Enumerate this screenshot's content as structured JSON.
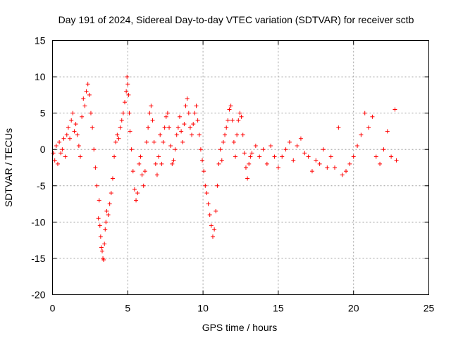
{
  "chart_data": {
    "type": "scatter",
    "title": "Day 191 of 2024, Sidereal Day-to-day VTEC variation (SDTVAR) for receiver sctb",
    "xlabel": "GPS time / hours",
    "ylabel": "SDTVAR / TECUs",
    "xlim": [
      0,
      25
    ],
    "ylim": [
      -20,
      15
    ],
    "xticks": [
      "0",
      "5",
      "10",
      "15",
      "20",
      "25"
    ],
    "yticks": [
      "15",
      "10",
      "5",
      "0",
      "-5",
      "-10",
      "-15",
      "-20"
    ],
    "grid": true,
    "marker": "plus",
    "color": "#ff0000",
    "series": [
      {
        "name": "sctb",
        "points": [
          [
            0.05,
            -0.5
          ],
          [
            0.15,
            -1.5
          ],
          [
            0.25,
            0.5
          ],
          [
            0.35,
            -2.0
          ],
          [
            0.45,
            1.0
          ],
          [
            0.55,
            -0.5
          ],
          [
            0.65,
            0.0
          ],
          [
            0.75,
            1.5
          ],
          [
            0.85,
            -1.0
          ],
          [
            0.95,
            2.0
          ],
          [
            1.05,
            3.0
          ],
          [
            1.15,
            1.5
          ],
          [
            1.25,
            4.0
          ],
          [
            1.35,
            5.0
          ],
          [
            1.45,
            2.5
          ],
          [
            1.55,
            3.5
          ],
          [
            1.65,
            2.0
          ],
          [
            1.75,
            0.5
          ],
          [
            1.85,
            -1.0
          ],
          [
            1.95,
            4.5
          ],
          [
            2.05,
            7.0
          ],
          [
            2.15,
            6.0
          ],
          [
            2.25,
            8.0
          ],
          [
            2.35,
            9.0
          ],
          [
            2.45,
            7.5
          ],
          [
            2.55,
            5.0
          ],
          [
            2.65,
            3.0
          ],
          [
            2.75,
            0.0
          ],
          [
            2.85,
            -2.5
          ],
          [
            2.95,
            -5.0
          ],
          [
            3.05,
            -9.5
          ],
          [
            3.1,
            -7.0
          ],
          [
            3.15,
            -10.5
          ],
          [
            3.2,
            -12.0
          ],
          [
            3.25,
            -13.5
          ],
          [
            3.3,
            -14.0
          ],
          [
            3.35,
            -15.0
          ],
          [
            3.4,
            -15.2
          ],
          [
            3.45,
            -13.0
          ],
          [
            3.5,
            -11.0
          ],
          [
            3.55,
            -10.0
          ],
          [
            3.6,
            -8.5
          ],
          [
            3.7,
            -9.0
          ],
          [
            3.8,
            -7.5
          ],
          [
            3.9,
            -6.0
          ],
          [
            4.0,
            -4.0
          ],
          [
            4.1,
            -1.0
          ],
          [
            4.2,
            1.0
          ],
          [
            4.3,
            2.0
          ],
          [
            4.4,
            1.5
          ],
          [
            4.5,
            3.0
          ],
          [
            4.6,
            4.0
          ],
          [
            4.7,
            5.0
          ],
          [
            4.8,
            6.5
          ],
          [
            4.9,
            8.0
          ],
          [
            4.95,
            10.0
          ],
          [
            5.0,
            9.0
          ],
          [
            5.05,
            7.5
          ],
          [
            5.1,
            5.0
          ],
          [
            5.15,
            2.5
          ],
          [
            5.25,
            0.0
          ],
          [
            5.35,
            -3.0
          ],
          [
            5.45,
            -5.5
          ],
          [
            5.55,
            -7.0
          ],
          [
            5.65,
            -6.0
          ],
          [
            5.75,
            -2.0
          ],
          [
            5.85,
            -1.0
          ],
          [
            5.95,
            -3.5
          ],
          [
            6.05,
            -5.0
          ],
          [
            6.15,
            -3.0
          ],
          [
            6.25,
            1.0
          ],
          [
            6.35,
            3.0
          ],
          [
            6.45,
            5.0
          ],
          [
            6.55,
            6.0
          ],
          [
            6.65,
            4.0
          ],
          [
            6.75,
            1.0
          ],
          [
            6.85,
            -2.0
          ],
          [
            6.95,
            -3.5
          ],
          [
            7.05,
            -1.0
          ],
          [
            7.15,
            2.0
          ],
          [
            7.25,
            -2.0
          ],
          [
            7.35,
            1.0
          ],
          [
            7.45,
            3.0
          ],
          [
            7.55,
            4.5
          ],
          [
            7.65,
            5.0
          ],
          [
            7.75,
            3.0
          ],
          [
            7.85,
            0.5
          ],
          [
            7.95,
            -2.0
          ],
          [
            8.05,
            -1.5
          ],
          [
            8.15,
            0.0
          ],
          [
            8.25,
            2.0
          ],
          [
            8.35,
            3.0
          ],
          [
            8.45,
            4.5
          ],
          [
            8.55,
            2.5
          ],
          [
            8.65,
            1.0
          ],
          [
            8.75,
            3.5
          ],
          [
            8.85,
            6.0
          ],
          [
            8.95,
            7.0
          ],
          [
            9.05,
            5.0
          ],
          [
            9.15,
            3.0
          ],
          [
            9.25,
            2.0
          ],
          [
            9.35,
            3.5
          ],
          [
            9.45,
            5.0
          ],
          [
            9.55,
            6.0
          ],
          [
            9.65,
            4.0
          ],
          [
            9.75,
            2.0
          ],
          [
            9.85,
            0.0
          ],
          [
            9.95,
            -1.5
          ],
          [
            10.05,
            -3.0
          ],
          [
            10.15,
            -5.0
          ],
          [
            10.25,
            -6.0
          ],
          [
            10.35,
            -7.5
          ],
          [
            10.45,
            -9.0
          ],
          [
            10.55,
            -10.5
          ],
          [
            10.65,
            -12.0
          ],
          [
            10.75,
            -11.0
          ],
          [
            10.85,
            -8.5
          ],
          [
            10.95,
            -5.0
          ],
          [
            11.05,
            -2.0
          ],
          [
            11.15,
            0.0
          ],
          [
            11.25,
            -1.5
          ],
          [
            11.35,
            1.0
          ],
          [
            11.45,
            2.0
          ],
          [
            11.55,
            3.0
          ],
          [
            11.65,
            4.0
          ],
          [
            11.75,
            5.5
          ],
          [
            11.85,
            6.0
          ],
          [
            11.95,
            4.0
          ],
          [
            12.05,
            1.0
          ],
          [
            12.15,
            -1.0
          ],
          [
            12.25,
            2.0
          ],
          [
            12.35,
            4.0
          ],
          [
            12.45,
            5.0
          ],
          [
            12.55,
            4.5
          ],
          [
            12.65,
            2.0
          ],
          [
            12.75,
            -0.5
          ],
          [
            12.85,
            -2.5
          ],
          [
            12.95,
            -4.0
          ],
          [
            13.05,
            -2.0
          ],
          [
            13.15,
            -1.0
          ],
          [
            13.25,
            -0.5
          ],
          [
            13.5,
            0.5
          ],
          [
            13.75,
            -1.0
          ],
          [
            14.0,
            0.0
          ],
          [
            14.25,
            -2.0
          ],
          [
            14.5,
            0.5
          ],
          [
            14.75,
            -1.0
          ],
          [
            15.0,
            -2.5
          ],
          [
            15.25,
            -1.0
          ],
          [
            15.5,
            0.0
          ],
          [
            15.75,
            1.0
          ],
          [
            16.0,
            -1.5
          ],
          [
            16.25,
            0.5
          ],
          [
            16.5,
            1.5
          ],
          [
            16.75,
            -0.5
          ],
          [
            17.0,
            -1.0
          ],
          [
            17.25,
            -3.0
          ],
          [
            17.5,
            -1.5
          ],
          [
            17.75,
            -2.0
          ],
          [
            18.0,
            0.0
          ],
          [
            18.25,
            -2.5
          ],
          [
            18.5,
            -1.0
          ],
          [
            18.75,
            -2.5
          ],
          [
            19.0,
            3.0
          ],
          [
            19.25,
            -3.5
          ],
          [
            19.5,
            -3.0
          ],
          [
            19.75,
            -2.0
          ],
          [
            20.0,
            -1.0
          ],
          [
            20.25,
            0.5
          ],
          [
            20.5,
            2.0
          ],
          [
            20.75,
            5.0
          ],
          [
            21.0,
            3.0
          ],
          [
            21.25,
            4.5
          ],
          [
            21.5,
            -1.0
          ],
          [
            21.75,
            -2.0
          ],
          [
            22.0,
            0.0
          ],
          [
            22.25,
            2.5
          ],
          [
            22.5,
            -1.0
          ],
          [
            22.75,
            5.5
          ],
          [
            22.85,
            -1.5
          ]
        ]
      }
    ]
  }
}
